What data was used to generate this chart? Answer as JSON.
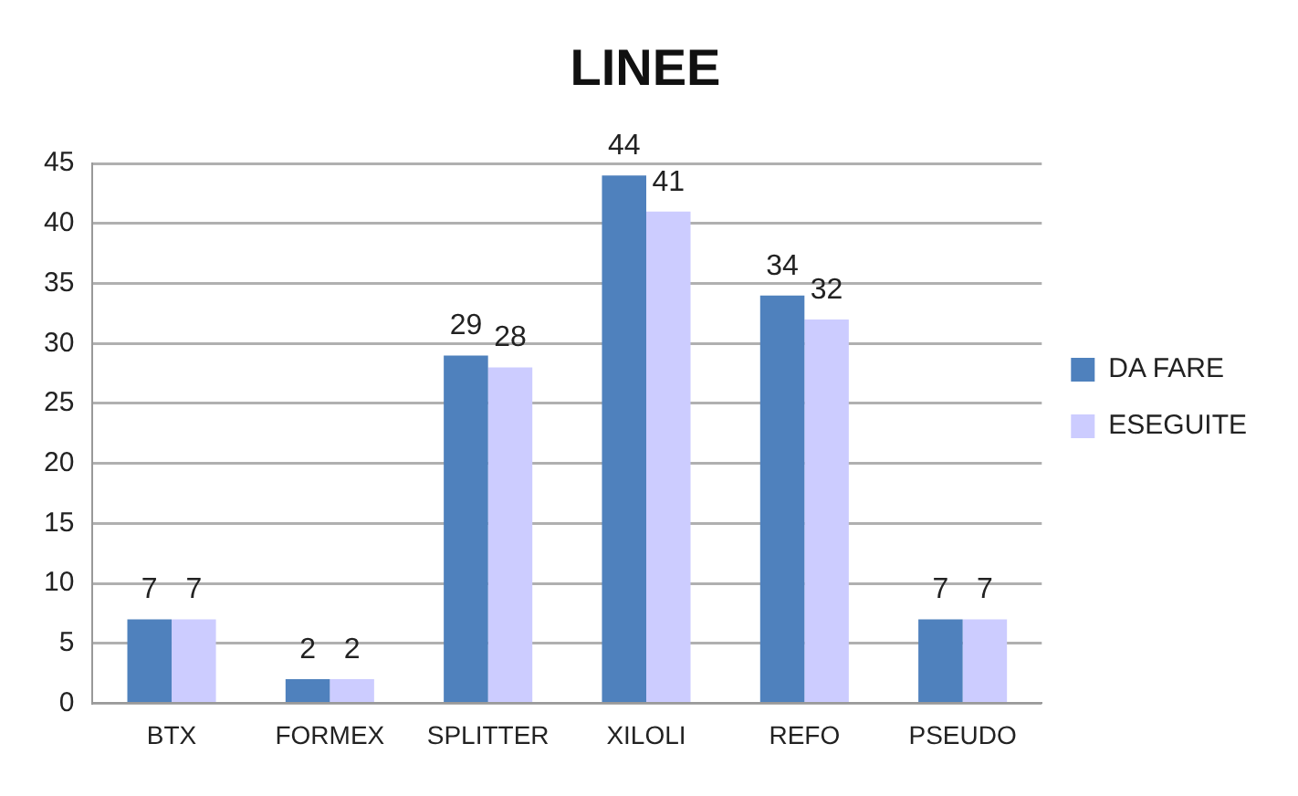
{
  "chart_data": {
    "type": "bar",
    "title": "LINEE",
    "categories": [
      "BTX",
      "FORMEX",
      "SPLITTER",
      "XILOLI",
      "REFO",
      "PSEUDO"
    ],
    "series": [
      {
        "name": "DA FARE",
        "color": "#4f81bd",
        "values": [
          7,
          2,
          29,
          44,
          34,
          7
        ]
      },
      {
        "name": "ESEGUITE",
        "color": "#ccccff",
        "values": [
          7,
          2,
          28,
          41,
          32,
          7
        ]
      }
    ],
    "ylim": [
      0,
      45
    ],
    "yticks": [
      0,
      5,
      10,
      15,
      20,
      25,
      30,
      35,
      40,
      45
    ],
    "grid": "y",
    "legend": "right",
    "data_labels": true
  }
}
